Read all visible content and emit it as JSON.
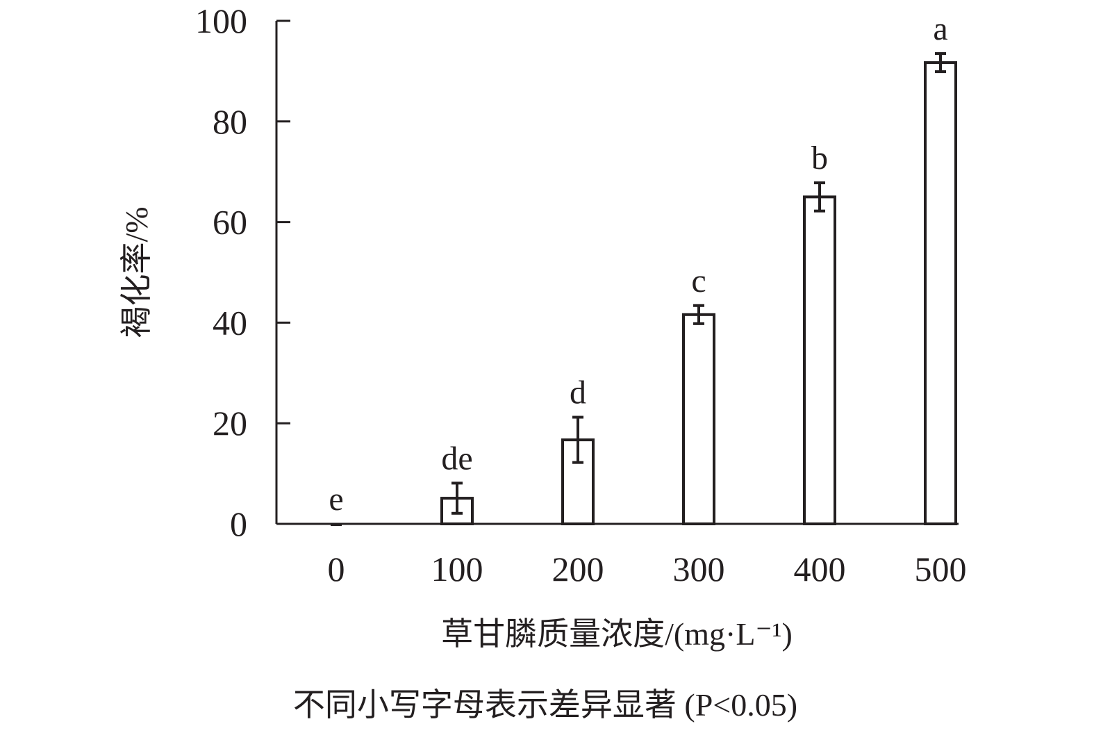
{
  "chart_data": {
    "type": "bar",
    "title": "",
    "xlabel": "草甘膦质量浓度/(mg·L⁻¹)",
    "ylabel": "褐化率/%",
    "note": "不同小写字母表示差异显著 (P<0.05)",
    "categories": [
      "0",
      "100",
      "200",
      "300",
      "400",
      "500"
    ],
    "values": [
      0,
      5.1,
      16.7,
      41.6,
      65.0,
      91.7
    ],
    "errors": [
      0,
      3.0,
      4.5,
      1.8,
      2.8,
      1.8
    ],
    "significance": [
      "e",
      "de",
      "d",
      "c",
      "b",
      "a"
    ],
    "ylim": [
      0,
      100
    ],
    "yticks": [
      "0",
      "20",
      "40",
      "60",
      "80",
      "100"
    ],
    "grid": false,
    "colors": {
      "bar_fill": "#ffffff",
      "stroke": "#231f20"
    }
  }
}
